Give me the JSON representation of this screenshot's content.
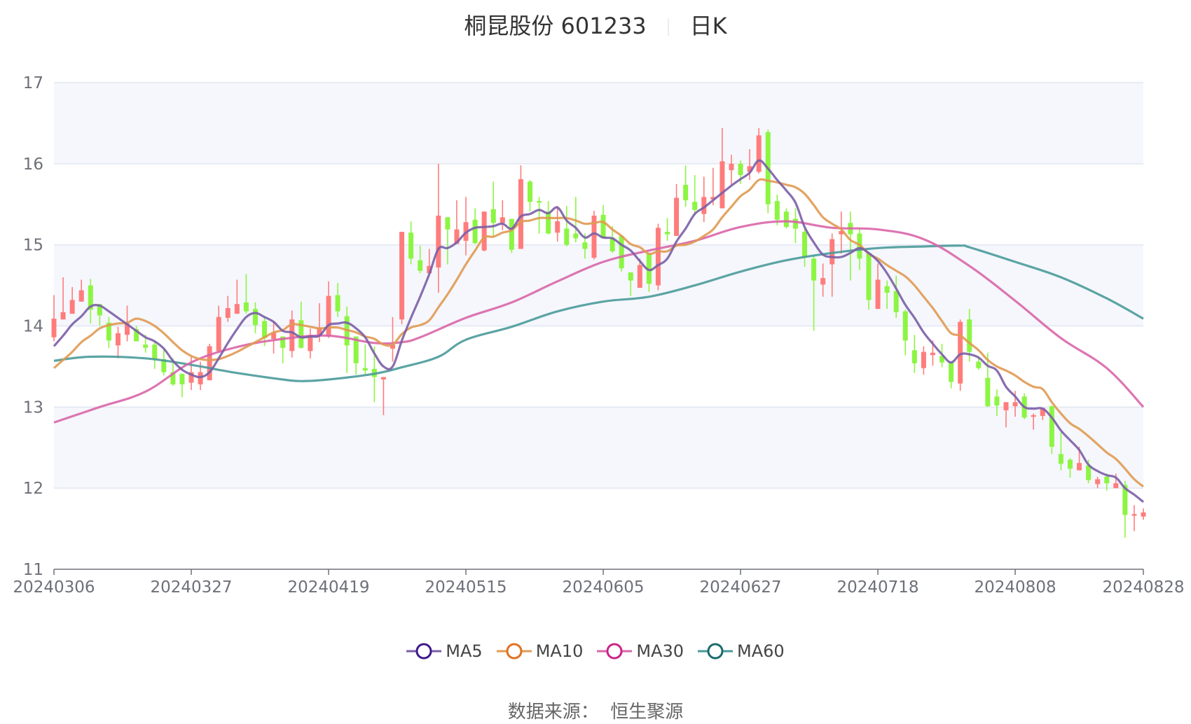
{
  "title": {
    "name": "桐昆股份 601233",
    "period": "日K"
  },
  "source": "数据来源：  恒生聚源",
  "colors": {
    "up": "#FF7C7C",
    "down": "#8CF542",
    "grid": "#E0E6F1",
    "band": "#F5F7FC",
    "axis": "#6E7079",
    "label": "#6E7079"
  },
  "chart_data": {
    "type": "candlestick",
    "ylim": [
      11,
      17
    ],
    "y_ticks": [
      "11",
      "12",
      "13",
      "14",
      "15",
      "16",
      "17"
    ],
    "x_tick_labels": [
      "20240306",
      "20240327",
      "20240419",
      "20240515",
      "20240605",
      "20240627",
      "20240718",
      "20240808",
      "20240828"
    ],
    "grid": true,
    "legend_position": "bottom",
    "categories": [
      "20240306",
      "20240307",
      "20240308",
      "20240311",
      "20240312",
      "20240313",
      "20240314",
      "20240315",
      "20240318",
      "20240319",
      "20240320",
      "20240321",
      "20240322",
      "20240325",
      "20240326",
      "20240327",
      "20240328",
      "20240329",
      "20240401",
      "20240402",
      "20240403",
      "20240408",
      "20240409",
      "20240410",
      "20240411",
      "20240412",
      "20240415",
      "20240416",
      "20240417",
      "20240418",
      "20240419",
      "20240422",
      "20240423",
      "20240424",
      "20240425",
      "20240426",
      "20240429",
      "20240430",
      "20240506",
      "20240507",
      "20240508",
      "20240509",
      "20240510",
      "20240513",
      "20240514",
      "20240515",
      "20240516",
      "20240517",
      "20240520",
      "20240521",
      "20240522",
      "20240523",
      "20240524",
      "20240527",
      "20240528",
      "20240529",
      "20240530",
      "20240531",
      "20240603",
      "20240604",
      "20240605",
      "20240606",
      "20240607",
      "20240611",
      "20240612",
      "20240613",
      "20240614",
      "20240617",
      "20240618",
      "20240619",
      "20240620",
      "20240621",
      "20240624",
      "20240625",
      "20240626",
      "20240627",
      "20240628",
      "20240701",
      "20240702",
      "20240703",
      "20240704",
      "20240705",
      "20240708",
      "20240709",
      "20240710",
      "20240711",
      "20240712",
      "20240715",
      "20240716",
      "20240717",
      "20240718",
      "20240719",
      "20240722",
      "20240723",
      "20240724",
      "20240725",
      "20240726",
      "20240729",
      "20240730",
      "20240731",
      "20240801",
      "20240802",
      "20240805",
      "20240806",
      "20240807",
      "20240808",
      "20240809",
      "20240812",
      "20240813",
      "20240814",
      "20240815",
      "20240816",
      "20240819",
      "20240820",
      "20240821",
      "20240822",
      "20240823",
      "20240826",
      "20240827",
      "20240828"
    ],
    "ohlc_order": [
      "open",
      "close",
      "low",
      "high"
    ],
    "candles": [
      [
        13.86,
        14.09,
        13.81,
        14.38
      ],
      [
        14.08,
        14.17,
        14.08,
        14.6
      ],
      [
        14.15,
        14.32,
        14.15,
        14.48
      ],
      [
        14.3,
        14.44,
        14.3,
        14.57
      ],
      [
        14.5,
        14.2,
        14.03,
        14.58
      ],
      [
        14.27,
        14.13,
        14.0,
        14.27
      ],
      [
        14.04,
        13.82,
        13.73,
        14.11
      ],
      [
        13.76,
        13.91,
        13.6,
        13.99
      ],
      [
        13.89,
        14.03,
        13.81,
        14.25
      ],
      [
        13.96,
        13.81,
        13.81,
        14.0
      ],
      [
        13.77,
        13.73,
        13.67,
        13.89
      ],
      [
        13.77,
        13.59,
        13.47,
        13.8
      ],
      [
        13.59,
        13.43,
        13.39,
        13.72
      ],
      [
        13.43,
        13.28,
        13.26,
        13.6
      ],
      [
        13.41,
        13.28,
        13.12,
        13.41
      ],
      [
        13.3,
        13.43,
        13.21,
        13.62
      ],
      [
        13.28,
        13.43,
        13.21,
        13.56
      ],
      [
        13.33,
        13.75,
        13.33,
        13.78
      ],
      [
        13.69,
        14.11,
        13.67,
        14.25
      ],
      [
        14.1,
        14.22,
        14.05,
        14.37
      ],
      [
        14.15,
        14.27,
        14.15,
        14.57
      ],
      [
        14.29,
        14.18,
        14.15,
        14.64
      ],
      [
        14.21,
        14.01,
        13.91,
        14.29
      ],
      [
        14.06,
        13.85,
        13.75,
        14.11
      ],
      [
        13.84,
        13.92,
        13.66,
        14.06
      ],
      [
        13.87,
        13.73,
        13.54,
        13.87
      ],
      [
        13.69,
        14.08,
        13.61,
        14.19
      ],
      [
        14.07,
        13.73,
        13.72,
        14.3
      ],
      [
        13.69,
        13.89,
        13.6,
        13.97
      ],
      [
        13.87,
        13.98,
        13.8,
        14.28
      ],
      [
        13.87,
        14.37,
        13.85,
        14.55
      ],
      [
        14.38,
        14.18,
        14.11,
        14.53
      ],
      [
        14.12,
        13.76,
        13.42,
        14.24
      ],
      [
        13.87,
        13.54,
        13.4,
        13.87
      ],
      [
        13.48,
        13.45,
        13.4,
        13.77
      ],
      [
        13.47,
        13.37,
        13.06,
        13.75
      ],
      [
        13.34,
        13.37,
        12.9,
        13.37
      ],
      [
        13.72,
        13.77,
        13.56,
        14.11
      ],
      [
        14.08,
        15.16,
        14.02,
        15.16
      ],
      [
        15.15,
        14.83,
        14.76,
        15.29
      ],
      [
        14.81,
        14.68,
        14.65,
        14.99
      ],
      [
        14.65,
        14.74,
        14.65,
        14.95
      ],
      [
        14.72,
        15.36,
        14.41,
        16.0
      ],
      [
        15.34,
        15.19,
        14.76,
        15.34
      ],
      [
        15.01,
        15.19,
        15.01,
        15.55
      ],
      [
        15.05,
        15.28,
        14.87,
        15.59
      ],
      [
        15.31,
        15.02,
        15.01,
        15.45
      ],
      [
        14.93,
        15.41,
        14.92,
        15.41
      ],
      [
        15.44,
        15.27,
        15.11,
        15.78
      ],
      [
        15.27,
        15.34,
        15.18,
        15.55
      ],
      [
        15.32,
        14.94,
        14.9,
        15.32
      ],
      [
        14.95,
        15.81,
        14.95,
        15.98
      ],
      [
        15.78,
        15.53,
        15.41,
        15.8
      ],
      [
        15.54,
        15.52,
        15.14,
        15.59
      ],
      [
        15.41,
        15.14,
        15.13,
        15.54
      ],
      [
        15.15,
        15.29,
        15.04,
        15.48
      ],
      [
        15.2,
        15.0,
        14.98,
        15.48
      ],
      [
        15.14,
        15.08,
        15.03,
        15.59
      ],
      [
        15.03,
        14.95,
        14.83,
        15.14
      ],
      [
        14.84,
        15.36,
        14.82,
        15.42
      ],
      [
        15.37,
        15.08,
        15.08,
        15.49
      ],
      [
        15.09,
        14.92,
        14.9,
        15.23
      ],
      [
        15.11,
        14.71,
        14.67,
        15.12
      ],
      [
        14.66,
        14.56,
        14.37,
        14.66
      ],
      [
        14.47,
        14.75,
        14.47,
        14.83
      ],
      [
        14.89,
        14.52,
        14.42,
        14.89
      ],
      [
        14.5,
        15.21,
        14.44,
        15.26
      ],
      [
        15.16,
        15.13,
        15.05,
        15.33
      ],
      [
        15.11,
        15.58,
        15.11,
        15.75
      ],
      [
        15.74,
        15.55,
        15.47,
        15.98
      ],
      [
        15.53,
        15.43,
        15.36,
        15.86
      ],
      [
        15.38,
        15.59,
        15.28,
        15.84
      ],
      [
        15.56,
        15.59,
        15.49,
        15.95
      ],
      [
        15.45,
        16.03,
        15.45,
        16.44
      ],
      [
        15.92,
        16.0,
        15.73,
        16.11
      ],
      [
        16.0,
        15.86,
        15.75,
        16.04
      ],
      [
        15.9,
        15.97,
        15.8,
        16.18
      ],
      [
        15.9,
        16.35,
        15.88,
        16.44
      ],
      [
        16.39,
        15.5,
        15.39,
        16.42
      ],
      [
        15.54,
        15.31,
        15.24,
        15.62
      ],
      [
        15.41,
        15.22,
        15.2,
        15.45
      ],
      [
        15.32,
        15.2,
        15.02,
        15.45
      ],
      [
        15.16,
        14.85,
        14.73,
        15.21
      ],
      [
        14.83,
        14.56,
        13.94,
        14.86
      ],
      [
        14.51,
        14.59,
        14.36,
        14.77
      ],
      [
        14.76,
        15.07,
        14.36,
        15.14
      ],
      [
        15.13,
        15.17,
        14.89,
        15.41
      ],
      [
        15.27,
        15.13,
        14.56,
        15.41
      ],
      [
        15.14,
        14.83,
        14.69,
        15.21
      ],
      [
        14.89,
        14.32,
        14.2,
        14.89
      ],
      [
        14.21,
        14.57,
        14.21,
        14.77
      ],
      [
        14.49,
        14.41,
        14.21,
        14.56
      ],
      [
        14.43,
        14.17,
        14.1,
        14.62
      ],
      [
        14.18,
        13.82,
        13.64,
        14.2
      ],
      [
        13.7,
        13.54,
        13.42,
        13.89
      ],
      [
        13.48,
        13.68,
        13.4,
        13.75
      ],
      [
        13.64,
        13.67,
        13.51,
        13.82
      ],
      [
        13.63,
        13.55,
        13.49,
        13.78
      ],
      [
        13.55,
        13.31,
        13.23,
        13.56
      ],
      [
        13.29,
        14.05,
        13.2,
        14.08
      ],
      [
        14.08,
        13.68,
        13.56,
        14.21
      ],
      [
        13.56,
        13.48,
        13.46,
        13.63
      ],
      [
        13.36,
        13.01,
        13.0,
        13.67
      ],
      [
        13.13,
        13.02,
        12.89,
        13.22
      ],
      [
        12.96,
        13.06,
        12.75,
        13.06
      ],
      [
        13.01,
        13.06,
        12.88,
        13.2
      ],
      [
        13.13,
        12.87,
        12.85,
        13.17
      ],
      [
        12.88,
        12.9,
        12.72,
        12.92
      ],
      [
        12.89,
        12.99,
        12.84,
        12.99
      ],
      [
        13.01,
        12.51,
        12.42,
        13.02
      ],
      [
        12.42,
        12.3,
        12.22,
        12.69
      ],
      [
        12.35,
        12.24,
        12.13,
        12.37
      ],
      [
        12.22,
        12.31,
        12.22,
        12.51
      ],
      [
        12.28,
        12.1,
        12.06,
        12.35
      ],
      [
        12.05,
        12.11,
        12.0,
        12.14
      ],
      [
        12.14,
        12.06,
        11.97,
        12.18
      ],
      [
        12.0,
        12.06,
        12.0,
        12.18
      ],
      [
        12.04,
        11.67,
        11.39,
        12.09
      ],
      [
        11.66,
        11.68,
        11.47,
        11.79
      ],
      [
        11.65,
        11.7,
        11.61,
        11.75
      ]
    ],
    "series": [
      {
        "name": "MA5",
        "color": "#7B5EA7",
        "icon_color": "#3C1A8A",
        "values": [
          13.75,
          13.88,
          14.02,
          14.12,
          14.24,
          14.25,
          14.18,
          14.1,
          14.02,
          13.94,
          13.86,
          13.81,
          13.72,
          13.57,
          13.46,
          13.4,
          13.37,
          13.43,
          13.6,
          13.79,
          13.96,
          14.11,
          14.16,
          14.11,
          14.05,
          13.94,
          13.92,
          13.86,
          13.87,
          13.88,
          14.01,
          14.03,
          14.04,
          13.97,
          13.86,
          13.66,
          13.5,
          13.5,
          13.82,
          14.1,
          14.36,
          14.64,
          14.95,
          14.96,
          15.03,
          15.15,
          15.21,
          15.22,
          15.23,
          15.26,
          15.2,
          15.35,
          15.38,
          15.43,
          15.39,
          15.46,
          15.3,
          15.21,
          15.09,
          15.14,
          15.09,
          15.08,
          15.0,
          14.93,
          14.8,
          14.69,
          14.75,
          14.83,
          15.04,
          15.2,
          15.38,
          15.46,
          15.55,
          15.64,
          15.73,
          15.81,
          15.89,
          16.04,
          15.94,
          15.8,
          15.67,
          15.52,
          15.22,
          15.03,
          14.88,
          14.85,
          14.85,
          14.9,
          14.96,
          14.9,
          14.8,
          14.65,
          14.46,
          14.26,
          14.1,
          13.92,
          13.78,
          13.65,
          13.55,
          13.65,
          13.65,
          13.61,
          13.51,
          13.45,
          13.25,
          13.13,
          13.0,
          12.98,
          12.98,
          12.87,
          12.71,
          12.59,
          12.47,
          12.29,
          12.21,
          12.16,
          12.13,
          12.0,
          11.92,
          11.83
        ]
      },
      {
        "name": "MA10",
        "color": "#E09A52",
        "icon_color": "#E07020",
        "values": [
          13.48,
          13.58,
          13.68,
          13.8,
          13.88,
          13.97,
          14.01,
          14.03,
          14.04,
          14.09,
          14.06,
          14.0,
          13.91,
          13.8,
          13.7,
          13.63,
          13.59,
          13.58,
          13.59,
          13.63,
          13.68,
          13.74,
          13.8,
          13.86,
          13.92,
          13.95,
          14.02,
          14.01,
          13.99,
          13.97,
          13.98,
          13.98,
          13.95,
          13.92,
          13.87,
          13.84,
          13.77,
          13.77,
          13.9,
          13.98,
          14.01,
          14.07,
          14.23,
          14.39,
          14.57,
          14.76,
          14.93,
          15.09,
          15.1,
          15.15,
          15.18,
          15.28,
          15.3,
          15.33,
          15.33,
          15.33,
          15.33,
          15.3,
          15.26,
          15.27,
          15.28,
          15.19,
          15.11,
          15.01,
          14.97,
          14.89,
          14.92,
          14.92,
          14.99,
          15.0,
          15.04,
          15.11,
          15.19,
          15.34,
          15.47,
          15.6,
          15.68,
          15.8,
          15.79,
          15.77,
          15.74,
          15.71,
          15.63,
          15.49,
          15.34,
          15.26,
          15.19,
          15.06,
          15.0,
          14.89,
          14.83,
          14.75,
          14.68,
          14.61,
          14.5,
          14.36,
          14.22,
          14.06,
          13.91,
          13.88,
          13.79,
          13.7,
          13.58,
          13.5,
          13.45,
          13.39,
          13.31,
          13.25,
          13.22,
          13.06,
          12.92,
          12.8,
          12.73,
          12.64,
          12.54,
          12.44,
          12.36,
          12.24,
          12.11,
          12.02
        ]
      },
      {
        "name": "MA30",
        "color": "#D966A8",
        "icon_color": "#CC2288",
        "x": [
          "20240306",
          "20240313",
          "20240320",
          "20240327",
          "20240403",
          "20240412",
          "20240419",
          "20240426",
          "20240506",
          "20240508",
          "20240515",
          "20240522",
          "20240529",
          "20240605",
          "20240613",
          "20240620",
          "20240627",
          "20240704",
          "20240711",
          "20240718",
          "20240725",
          "20240801",
          "20240808",
          "20240815",
          "20240822",
          "20240828"
        ],
        "values": [
          12.81,
          13.0,
          13.19,
          13.55,
          13.74,
          13.84,
          13.88,
          13.79,
          13.8,
          13.86,
          14.1,
          14.29,
          14.55,
          14.79,
          14.93,
          15.05,
          15.22,
          15.29,
          15.21,
          15.19,
          15.07,
          14.74,
          14.31,
          13.85,
          13.48,
          13.0
        ]
      },
      {
        "name": "MA60",
        "color": "#4A9A9A",
        "icon_color": "#1A6B6B",
        "x": [
          "20240306",
          "20240312",
          "20240320",
          "20240327",
          "20240403",
          "20240412",
          "20240416",
          "20240419",
          "20240426",
          "20240506",
          "20240510",
          "20240515",
          "20240522",
          "20240529",
          "20240605",
          "20240613",
          "20240620",
          "20240627",
          "20240704",
          "20240711",
          "20240718",
          "20240725",
          "20240731",
          "20240801",
          "20240808",
          "20240815",
          "20240822",
          "20240828"
        ],
        "values": [
          13.57,
          13.62,
          13.6,
          13.52,
          13.42,
          13.34,
          13.32,
          13.34,
          13.41,
          13.49,
          13.62,
          13.83,
          13.99,
          14.18,
          14.3,
          14.36,
          14.5,
          14.67,
          14.81,
          14.9,
          14.96,
          14.98,
          14.99,
          14.97,
          14.79,
          14.6,
          14.34,
          14.09
        ]
      }
    ]
  }
}
